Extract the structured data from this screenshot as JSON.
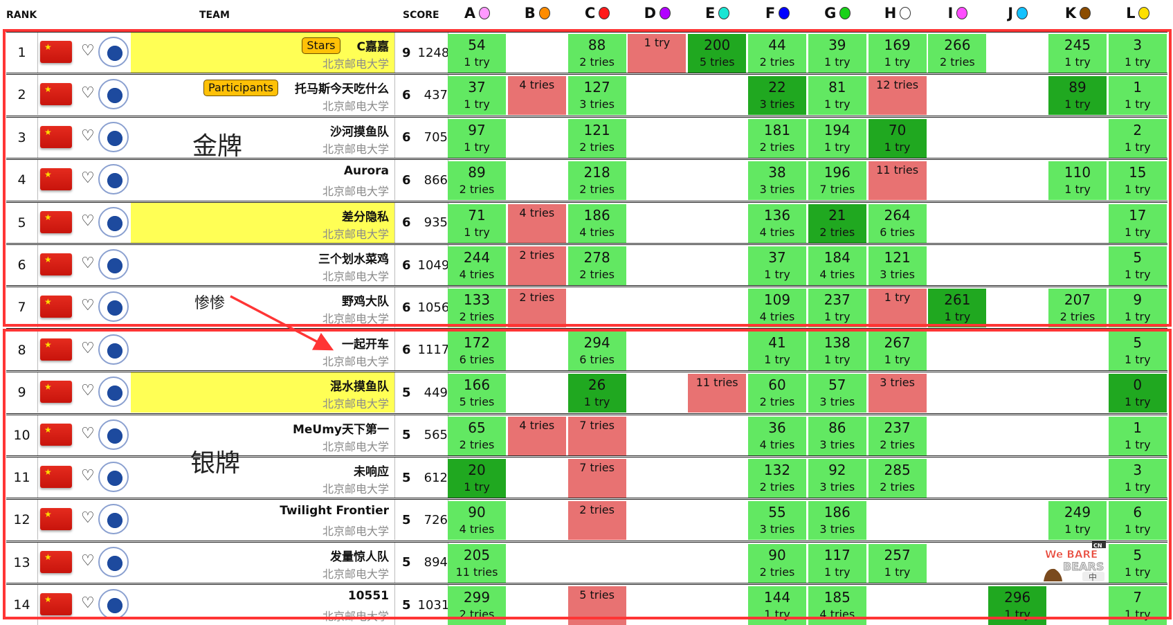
{
  "header": {
    "rank": "RANK",
    "team": "TEAM",
    "score": "SCORE"
  },
  "problems": [
    {
      "label": "A",
      "color": "#ff99ff"
    },
    {
      "label": "B",
      "color": "#ff8c00"
    },
    {
      "label": "C",
      "color": "#ff1a1a"
    },
    {
      "label": "D",
      "color": "#b200ff"
    },
    {
      "label": "E",
      "color": "#1ae6d4"
    },
    {
      "label": "F",
      "color": "#0000ff"
    },
    {
      "label": "G",
      "color": "#1ad21a"
    },
    {
      "label": "H",
      "color": "#ffffff"
    },
    {
      "label": "I",
      "color": "#ff4dff"
    },
    {
      "label": "J",
      "color": "#14c2ff"
    },
    {
      "label": "K",
      "color": "#8b4c00"
    },
    {
      "label": "L",
      "color": "#ffe000"
    }
  ],
  "colors": {
    "solved": "#62e862",
    "first_solve": "#20a820",
    "failed": "#e87272",
    "highlight": "#ffff55",
    "badge": "#ffc107",
    "annotation_box": "#ff3535"
  },
  "rows": [
    {
      "rank": "1",
      "name": "C嘉嘉",
      "school": "北京邮电大学",
      "badge": "Stars",
      "hl": true,
      "solved": "9",
      "penalty": "1248",
      "cells": [
        [
          "s",
          "54",
          "1 try"
        ],
        null,
        [
          "s",
          "88",
          "2 tries"
        ],
        [
          "x",
          "",
          "1 try"
        ],
        [
          "f",
          "200",
          "5 tries"
        ],
        [
          "s",
          "44",
          "2 tries"
        ],
        [
          "s",
          "39",
          "1 try"
        ],
        [
          "s",
          "169",
          "1 try"
        ],
        [
          "s",
          "266",
          "2 tries"
        ],
        null,
        [
          "s",
          "245",
          "1 try"
        ],
        [
          "s",
          "3",
          "1 try"
        ]
      ]
    },
    {
      "rank": "2",
      "name": "托马斯今天吃什么",
      "school": "北京邮电大学",
      "badge": "Participants",
      "hl": false,
      "solved": "6",
      "penalty": "437",
      "cells": [
        [
          "s",
          "37",
          "1 try"
        ],
        [
          "x",
          "",
          "4 tries"
        ],
        [
          "s",
          "127",
          "3 tries"
        ],
        null,
        null,
        [
          "f",
          "22",
          "3 tries"
        ],
        [
          "s",
          "81",
          "1 try"
        ],
        [
          "x",
          "",
          "12 tries"
        ],
        null,
        null,
        [
          "f",
          "89",
          "1 try"
        ],
        [
          "s",
          "1",
          "1 try"
        ]
      ]
    },
    {
      "rank": "3",
      "name": "沙河摸鱼队",
      "school": "北京邮电大学",
      "hl": false,
      "solved": "6",
      "penalty": "705",
      "cells": [
        [
          "s",
          "97",
          "1 try"
        ],
        null,
        [
          "s",
          "121",
          "2 tries"
        ],
        null,
        null,
        [
          "s",
          "181",
          "2 tries"
        ],
        [
          "s",
          "194",
          "1 try"
        ],
        [
          "f",
          "70",
          "1 try"
        ],
        null,
        null,
        null,
        [
          "s",
          "2",
          "1 try"
        ]
      ]
    },
    {
      "rank": "4",
      "name": "Aurora",
      "school": "北京邮电大学",
      "hl": false,
      "solved": "6",
      "penalty": "866",
      "cells": [
        [
          "s",
          "89",
          "2 tries"
        ],
        null,
        [
          "s",
          "218",
          "2 tries"
        ],
        null,
        null,
        [
          "s",
          "38",
          "3 tries"
        ],
        [
          "s",
          "196",
          "7 tries"
        ],
        [
          "x",
          "",
          "11 tries"
        ],
        null,
        null,
        [
          "s",
          "110",
          "1 try"
        ],
        [
          "s",
          "15",
          "1 try"
        ]
      ]
    },
    {
      "rank": "5",
      "name": "差分隐私",
      "school": "北京邮电大学",
      "hl": true,
      "solved": "6",
      "penalty": "935",
      "cells": [
        [
          "s",
          "71",
          "1 try"
        ],
        [
          "x",
          "",
          "4 tries"
        ],
        [
          "s",
          "186",
          "4 tries"
        ],
        null,
        null,
        [
          "s",
          "136",
          "4 tries"
        ],
        [
          "f",
          "21",
          "2 tries"
        ],
        [
          "s",
          "264",
          "6 tries"
        ],
        null,
        null,
        null,
        [
          "s",
          "17",
          "1 try"
        ]
      ]
    },
    {
      "rank": "6",
      "name": "三个划水菜鸡",
      "school": "北京邮电大学",
      "hl": false,
      "solved": "6",
      "penalty": "1049",
      "cells": [
        [
          "s",
          "244",
          "4 tries"
        ],
        [
          "x",
          "",
          "2 tries"
        ],
        [
          "s",
          "278",
          "2 tries"
        ],
        null,
        null,
        [
          "s",
          "37",
          "1 try"
        ],
        [
          "s",
          "184",
          "4 tries"
        ],
        [
          "s",
          "121",
          "3 tries"
        ],
        null,
        null,
        null,
        [
          "s",
          "5",
          "1 try"
        ]
      ]
    },
    {
      "rank": "7",
      "name": "野鸡大队",
      "school": "北京邮电大学",
      "hl": false,
      "solved": "6",
      "penalty": "1056",
      "cells": [
        [
          "s",
          "133",
          "2 tries"
        ],
        [
          "x",
          "",
          "2 tries"
        ],
        null,
        null,
        null,
        [
          "s",
          "109",
          "4 tries"
        ],
        [
          "s",
          "237",
          "1 try"
        ],
        [
          "x",
          "",
          "1 try"
        ],
        [
          "f",
          "261",
          "1 try"
        ],
        null,
        [
          "s",
          "207",
          "2 tries"
        ],
        [
          "s",
          "9",
          "1 try"
        ]
      ]
    },
    {
      "rank": "8",
      "name": "一起开车",
      "school": "北京邮电大学",
      "hl": false,
      "solved": "6",
      "penalty": "1117",
      "cells": [
        [
          "s",
          "172",
          "6 tries"
        ],
        null,
        [
          "s",
          "294",
          "6 tries"
        ],
        null,
        null,
        [
          "s",
          "41",
          "1 try"
        ],
        [
          "s",
          "138",
          "1 try"
        ],
        [
          "s",
          "267",
          "1 try"
        ],
        null,
        null,
        null,
        [
          "s",
          "5",
          "1 try"
        ]
      ]
    },
    {
      "rank": "9",
      "name": "混水摸鱼队",
      "school": "北京邮电大学",
      "hl": true,
      "solved": "5",
      "penalty": "449",
      "cells": [
        [
          "s",
          "166",
          "5 tries"
        ],
        null,
        [
          "f",
          "26",
          "1 try"
        ],
        null,
        [
          "x",
          "",
          "11 tries"
        ],
        [
          "s",
          "60",
          "2 tries"
        ],
        [
          "s",
          "57",
          "3 tries"
        ],
        [
          "x",
          "",
          "3 tries"
        ],
        null,
        null,
        null,
        [
          "f",
          "0",
          "1 try"
        ]
      ]
    },
    {
      "rank": "10",
      "name": "MeUmy天下第一",
      "school": "北京邮电大学",
      "hl": false,
      "solved": "5",
      "penalty": "565",
      "cells": [
        [
          "s",
          "65",
          "2 tries"
        ],
        [
          "x",
          "",
          "4 tries"
        ],
        [
          "x",
          "",
          "7 tries"
        ],
        null,
        null,
        [
          "s",
          "36",
          "4 tries"
        ],
        [
          "s",
          "86",
          "3 tries"
        ],
        [
          "s",
          "237",
          "2 tries"
        ],
        null,
        null,
        null,
        [
          "s",
          "1",
          "1 try"
        ]
      ]
    },
    {
      "rank": "11",
      "name": "未响应",
      "school": "北京邮电大学",
      "hl": false,
      "solved": "5",
      "penalty": "612",
      "cells": [
        [
          "f",
          "20",
          "1 try"
        ],
        null,
        [
          "x",
          "",
          "7 tries"
        ],
        null,
        null,
        [
          "s",
          "132",
          "2 tries"
        ],
        [
          "s",
          "92",
          "3 tries"
        ],
        [
          "s",
          "285",
          "2 tries"
        ],
        null,
        null,
        null,
        [
          "s",
          "3",
          "1 try"
        ]
      ]
    },
    {
      "rank": "12",
      "name": "Twilight Frontier",
      "school": "北京邮电大学",
      "hl": false,
      "solved": "5",
      "penalty": "726",
      "cells": [
        [
          "s",
          "90",
          "4 tries"
        ],
        null,
        [
          "x",
          "",
          "2 tries"
        ],
        null,
        null,
        [
          "s",
          "55",
          "3 tries"
        ],
        [
          "s",
          "186",
          "3 tries"
        ],
        null,
        null,
        null,
        [
          "s",
          "249",
          "1 try"
        ],
        [
          "s",
          "6",
          "1 try"
        ]
      ]
    },
    {
      "rank": "13",
      "name": "发量惊人队",
      "school": "北京邮电大学",
      "hl": false,
      "solved": "5",
      "penalty": "894",
      "cells": [
        [
          "s",
          "205",
          "11 tries"
        ],
        null,
        null,
        null,
        null,
        [
          "s",
          "90",
          "2 tries"
        ],
        [
          "s",
          "117",
          "1 try"
        ],
        [
          "s",
          "257",
          "1 try"
        ],
        null,
        null,
        null,
        [
          "s",
          "5",
          "1 try"
        ]
      ]
    },
    {
      "rank": "14",
      "name": "10551",
      "school": "北京邮电大学",
      "hl": false,
      "solved": "5",
      "penalty": "1031",
      "cells": [
        [
          "s",
          "299",
          "2 tries"
        ],
        null,
        [
          "x",
          "",
          "5 tries"
        ],
        null,
        null,
        [
          "s",
          "144",
          "1 try"
        ],
        [
          "s",
          "185",
          "4 tries"
        ],
        null,
        null,
        [
          "f",
          "296",
          "1 try"
        ],
        null,
        [
          "s",
          "7",
          "1 try"
        ]
      ]
    }
  ],
  "annotations": {
    "gold": "金牌",
    "silver": "银牌",
    "sad": "惨惨"
  },
  "mascot": {
    "logo_text": "We BARE BEARS",
    "network": "CN",
    "tag": "中"
  }
}
